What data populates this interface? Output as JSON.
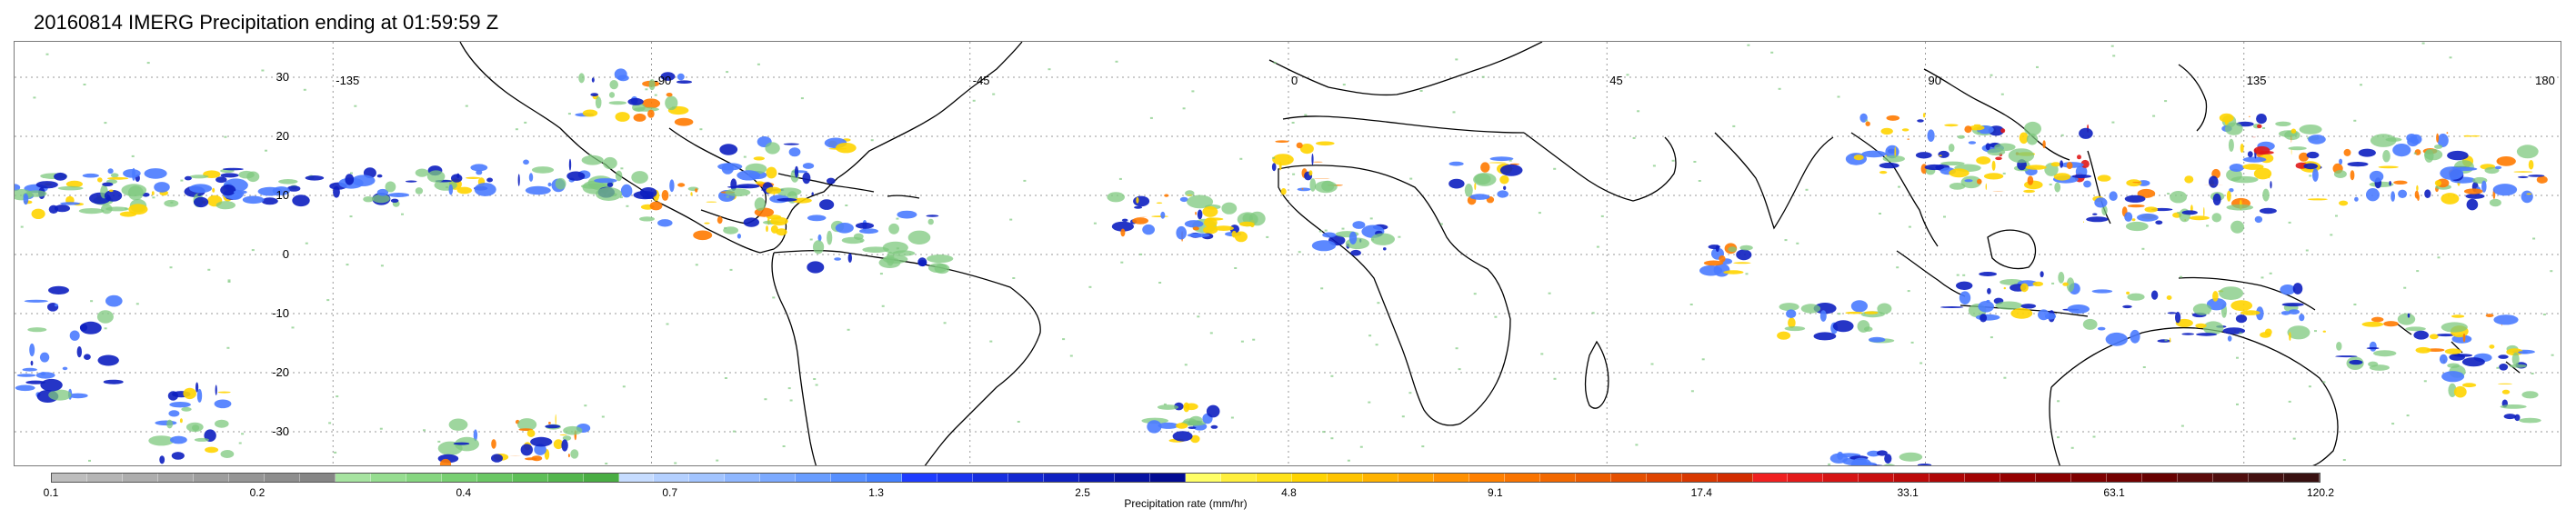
{
  "title": "20160814 IMERG Precipitation ending at 01:59:59 Z",
  "map": {
    "longitude_labels": [
      "-135",
      "-90",
      "-45",
      "0",
      "45",
      "90",
      "135",
      "180"
    ],
    "latitude_labels": [
      "30",
      "20",
      "10",
      "0",
      "-10",
      "-20",
      "-30"
    ],
    "grid": "dotted",
    "frame_color": "#7a7a7a",
    "land_outline_color": "#000000"
  },
  "colorbar": {
    "label": "Precipitation rate (mm/hr)",
    "ticks": [
      "0.1",
      "0.2",
      "0.4",
      "0.7",
      "1.3",
      "2.5",
      "4.8",
      "9.1",
      "17.4",
      "33.1",
      "63.1",
      "120.2"
    ],
    "colors": [
      "#bdbdbd",
      "#b5b5b5",
      "#adadad",
      "#a5a5a5",
      "#9d9d9d",
      "#959595",
      "#8d8d8d",
      "#858585",
      "#a6e3a0",
      "#96dd90",
      "#86d680",
      "#78cf72",
      "#6ac764",
      "#5ebf58",
      "#53b64d",
      "#49ad43",
      "#c6dcff",
      "#b4d0ff",
      "#a2c4ff",
      "#8fb7ff",
      "#7caaff",
      "#699dff",
      "#568fff",
      "#4481ff",
      "#1e3cff",
      "#1a35ef",
      "#162ee0",
      "#1227d0",
      "#0e20c1",
      "#0a19b1",
      "#0612a2",
      "#020b92",
      "#ffff66",
      "#ffef3d",
      "#ffe21a",
      "#ffd400",
      "#ffc400",
      "#ffb300",
      "#ffa200",
      "#ff9000",
      "#ff8000",
      "#f97400",
      "#f26800",
      "#ec5c00",
      "#e55000",
      "#df4400",
      "#d83800",
      "#d22c00",
      "#f02020",
      "#e31a1a",
      "#d61414",
      "#c90f0f",
      "#bc0a0a",
      "#af0606",
      "#a20303",
      "#950000",
      "#8a0000",
      "#7f0000",
      "#730000",
      "#670000",
      "#5b0a0a",
      "#4f0d0d",
      "#431010",
      "#381010"
    ]
  },
  "legend_precip_colors": {
    "light": "#7dc87d",
    "moderate": "#4a7bff",
    "heavy": "#0d1fc0",
    "intense": "#ffd400",
    "very_intense": "#ff7a00",
    "extreme": "#e01a1a"
  }
}
